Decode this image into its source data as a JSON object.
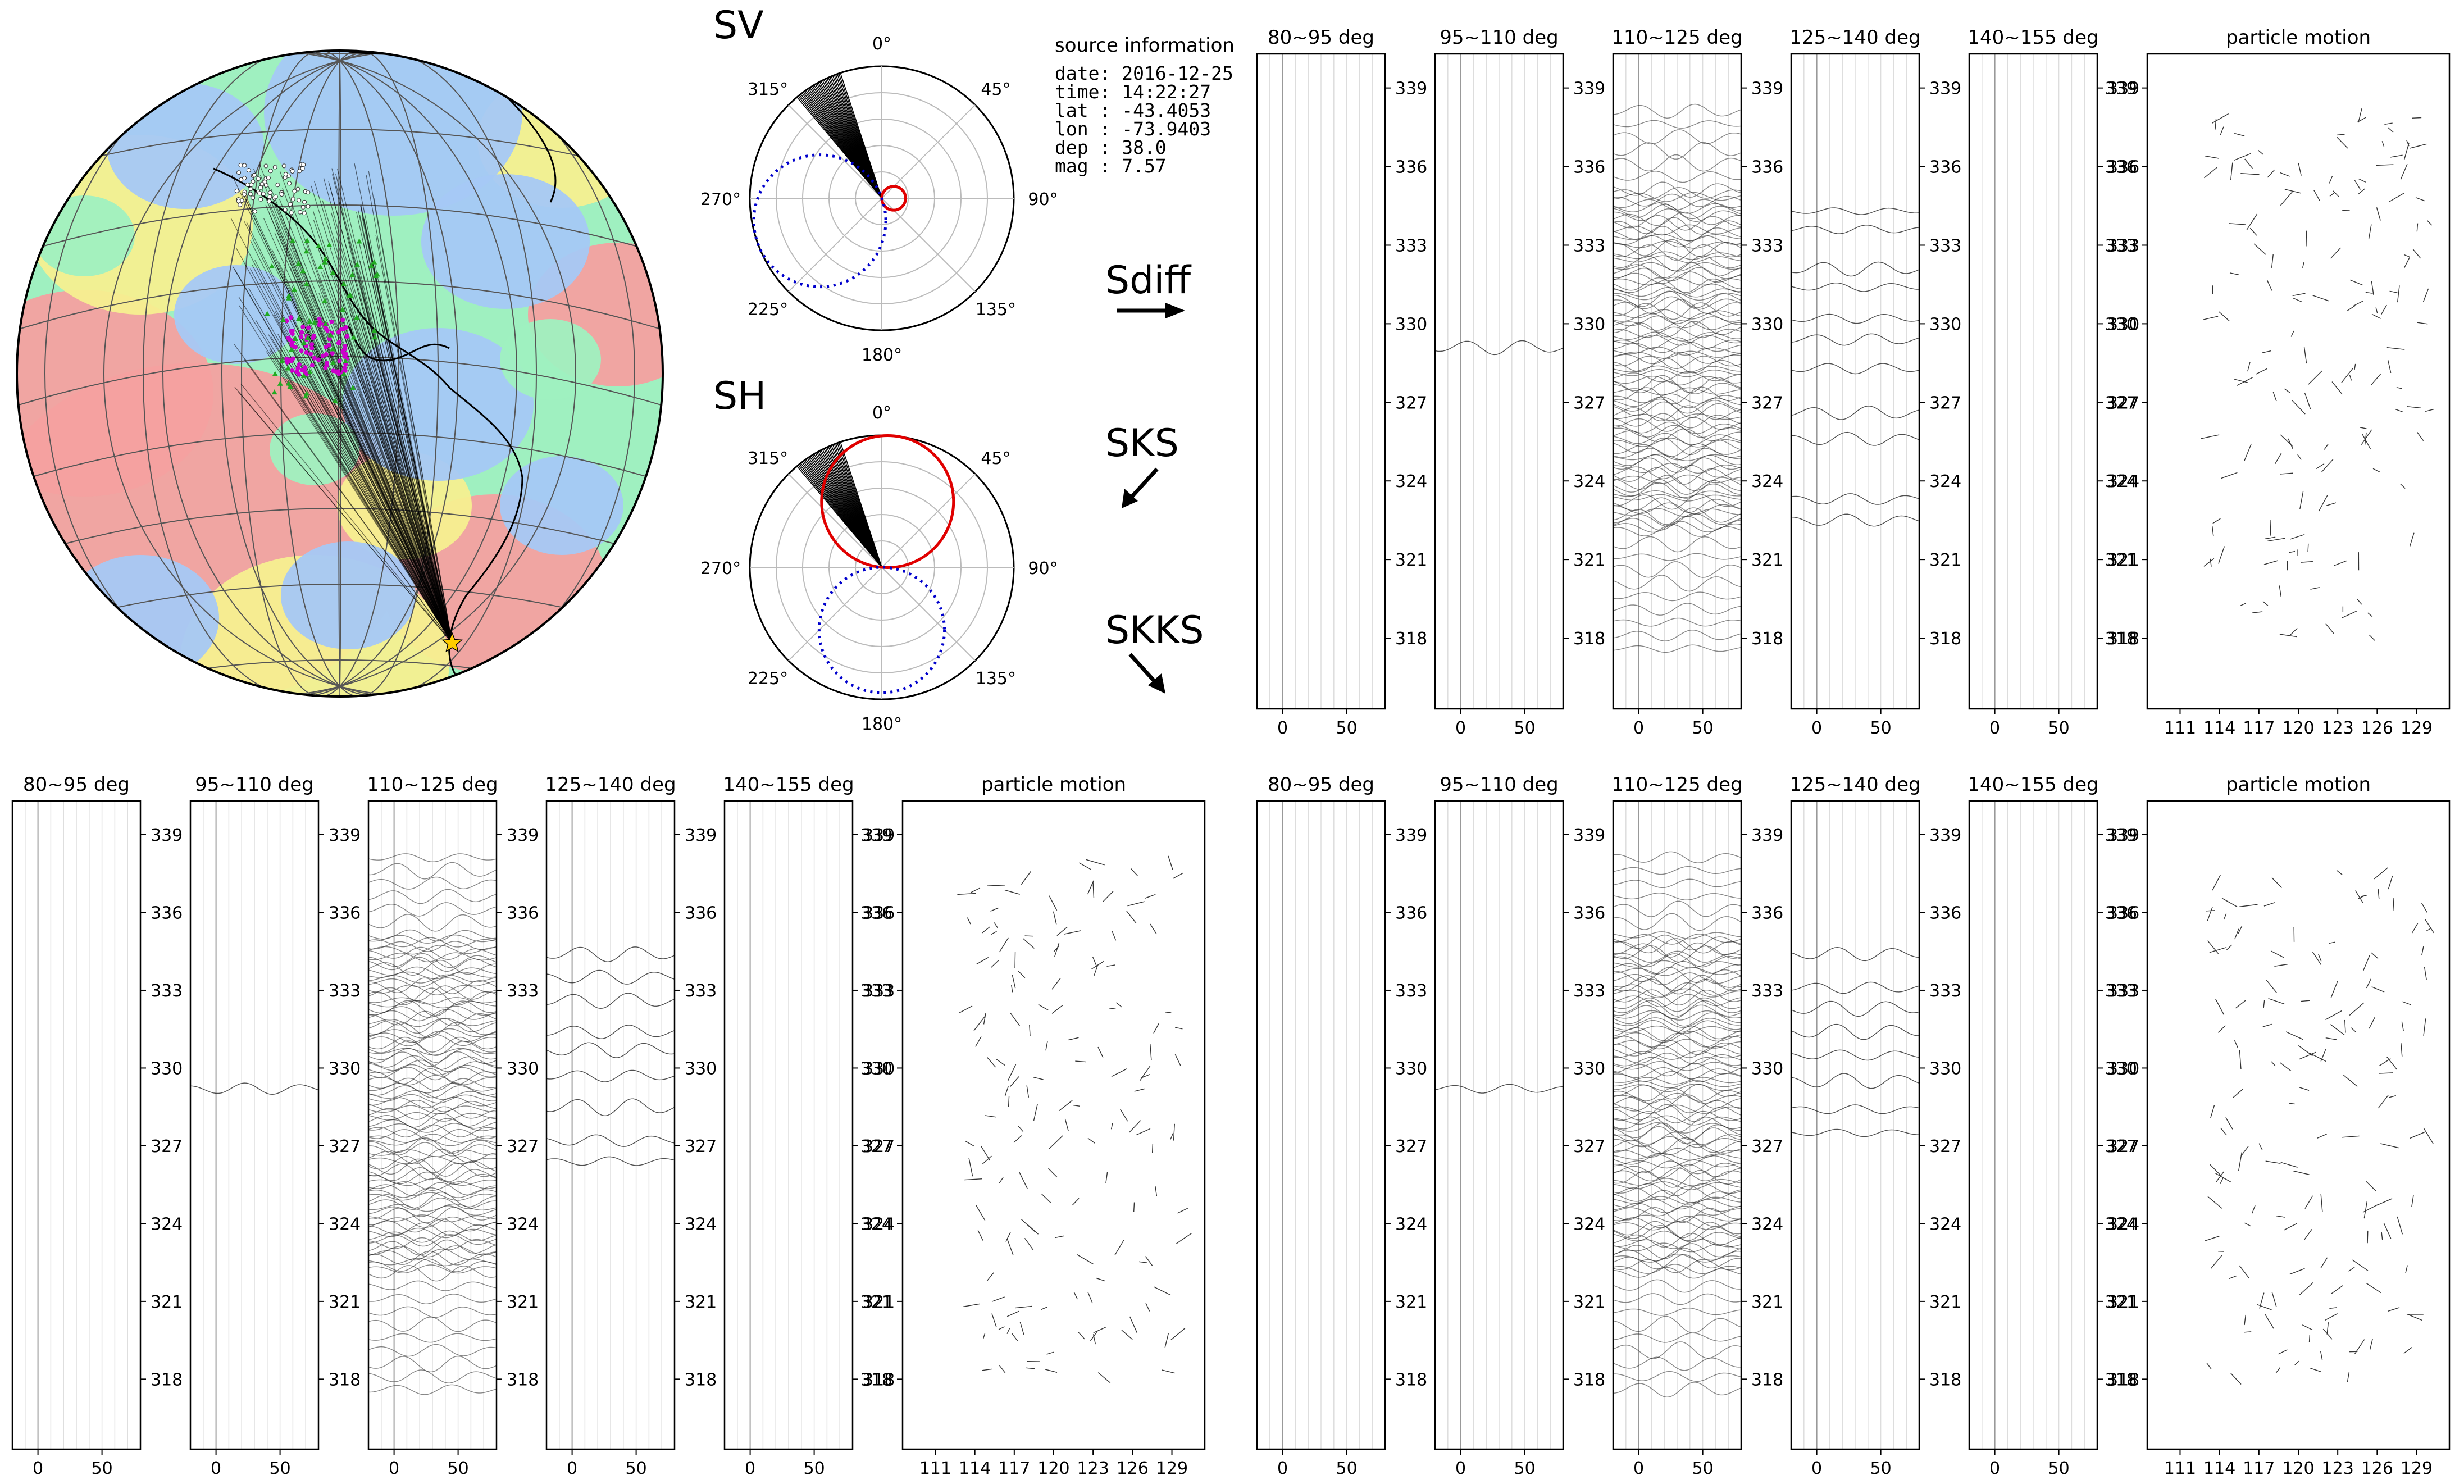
{
  "source_info": {
    "title": "source information",
    "lines": [
      "date: 2016-12-25",
      "time: 14:22:27",
      "lat : -43.4053",
      "lon : -73.9403",
      "dep : 38.0",
      "mag : 7.57"
    ]
  },
  "phases": [
    "Sdiff",
    "SKS",
    "SKKS"
  ],
  "colors": {
    "axis": "#000000",
    "grid": "#bbbbbb",
    "radiation_positive": "#e00000",
    "radiation_negative": "#0000cc",
    "trace": "#222222",
    "map_red": "#f4a0a0",
    "map_yellow": "#f6ef90",
    "map_green": "#9ff0c0",
    "map_blue": "#a5c8f6",
    "paths": "#000000",
    "stations_white": "#ffffff",
    "stations_green": "#22aa22",
    "stations_magenta": "#cc00cc",
    "source_star": "#ffcc00"
  },
  "map": {
    "name": "ray-path-map",
    "icons": [
      "source-star-icon",
      "station-marker-icon"
    ]
  },
  "chart_data": [
    {
      "name": "SV",
      "type": "polar",
      "title": "SV",
      "theta_ticks": [
        "0°",
        "45°",
        "90°",
        "135°",
        "180°",
        "225°",
        "270°",
        "315°"
      ],
      "ray_azimuth_range_deg": [
        320,
        342
      ],
      "lobes": [
        {
          "color": "red",
          "style": "solid",
          "center_azimuth_deg": 90,
          "relative_size": 0.18
        },
        {
          "color": "blue",
          "style": "dotted",
          "center_azimuth_deg": 250,
          "relative_size": 1.0
        }
      ]
    },
    {
      "name": "SH",
      "type": "polar",
      "title": "SH",
      "theta_ticks": [
        "0°",
        "45°",
        "90°",
        "135°",
        "180°",
        "225°",
        "270°",
        "315°"
      ],
      "ray_azimuth_range_deg": [
        320,
        342
      ],
      "lobes": [
        {
          "color": "red",
          "style": "solid",
          "center_azimuth_deg": 5,
          "relative_size": 1.0
        },
        {
          "color": "blue",
          "style": "dotted",
          "center_azimuth_deg": 180,
          "relative_size": 0.95
        }
      ]
    },
    {
      "name": "Sdiff",
      "type": "line",
      "panels": [
        "80~95 deg",
        "95~110 deg",
        "110~125 deg",
        "125~140 deg",
        "140~155 deg"
      ],
      "particle_motion_title": "particle motion",
      "x_ticks": [
        0,
        50
      ],
      "xlim": [
        -20,
        80
      ],
      "y_ticks": [
        318,
        321,
        324,
        327,
        330,
        333,
        336,
        339
      ],
      "ylim": [
        315.3,
        340.3
      ],
      "pm_x_ticks": [
        111,
        114,
        117,
        120,
        123,
        126,
        129
      ],
      "pm_xlim": [
        108.5,
        131.5
      ],
      "trace_offsets": [
        [],
        [
          329.1
        ],
        "dense",
        [
          322.5,
          323.3,
          325.6,
          326.6,
          328.3,
          329.4,
          330.2,
          331.4,
          332.1,
          333.6,
          334.3
        ],
        []
      ]
    },
    {
      "name": "SKS",
      "type": "line",
      "panels": [
        "80~95 deg",
        "95~110 deg",
        "110~125 deg",
        "125~140 deg",
        "140~155 deg"
      ],
      "particle_motion_title": "particle motion",
      "x_ticks": [
        0,
        50
      ],
      "xlim": [
        -20,
        80
      ],
      "y_ticks": [
        318,
        321,
        324,
        327,
        330,
        333,
        336,
        339
      ],
      "ylim": [
        315.3,
        340.3
      ],
      "pm_x_ticks": [
        111,
        114,
        117,
        120,
        123,
        126,
        129
      ],
      "pm_xlim": [
        108.5,
        131.5
      ],
      "trace_offsets": [
        [],
        [
          329.2
        ],
        "dense",
        [
          326.4,
          327.2,
          328.5,
          329.7,
          330.7,
          331.4,
          332.6,
          333.5,
          334.4
        ],
        []
      ]
    },
    {
      "name": "SKKS",
      "type": "line",
      "panels": [
        "80~95 deg",
        "95~110 deg",
        "110~125 deg",
        "125~140 deg",
        "140~155 deg"
      ],
      "particle_motion_title": "particle motion",
      "x_ticks": [
        0,
        50
      ],
      "xlim": [
        -20,
        80
      ],
      "y_ticks": [
        318,
        321,
        324,
        327,
        330,
        333,
        336,
        339
      ],
      "ylim": [
        315.3,
        340.3
      ],
      "pm_x_ticks": [
        111,
        114,
        117,
        120,
        123,
        126,
        129
      ],
      "pm_xlim": [
        108.5,
        131.5
      ],
      "trace_offsets": [
        [],
        [
          329.2
        ],
        "dense",
        [
          327.5,
          328.4,
          329.5,
          330.5,
          331.4,
          332.3,
          333.1,
          334.4
        ],
        []
      ]
    }
  ]
}
